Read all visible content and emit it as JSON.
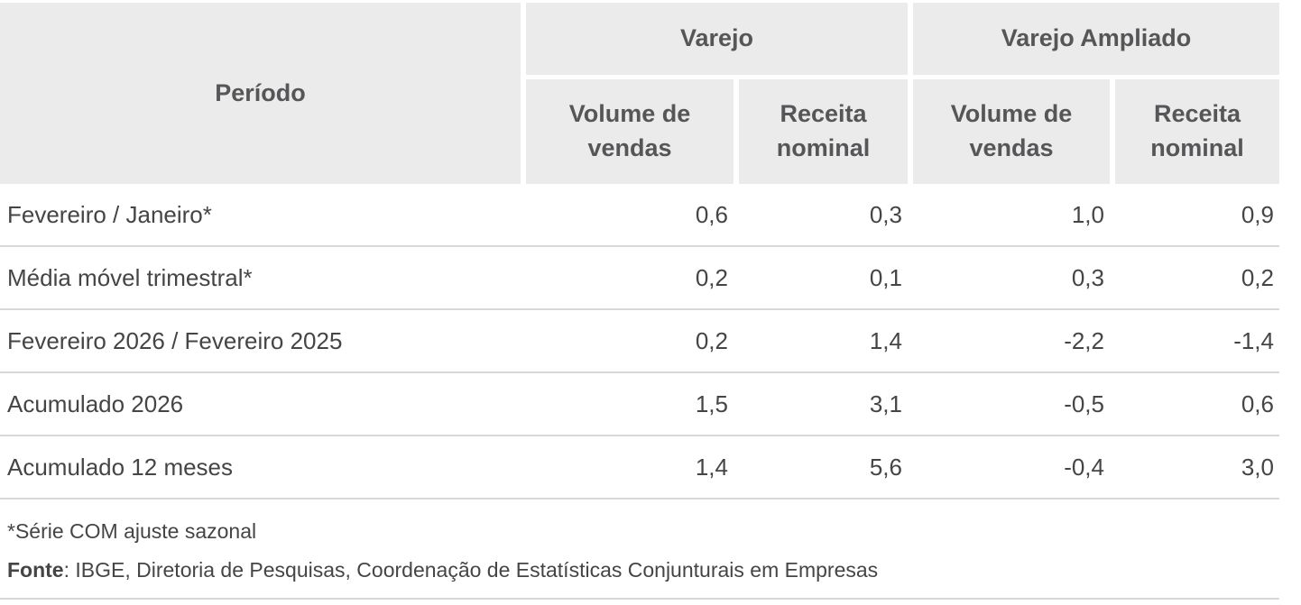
{
  "table": {
    "header": {
      "period_label": "Período",
      "group_varejo": "Varejo",
      "group_varejo_ampliado": "Varejo Ampliado",
      "sub": [
        "Volume de\nvendas",
        "Receita\nnominal",
        "Volume de\nvendas",
        "Receita\nnominal"
      ]
    },
    "rows": [
      {
        "label": "Fevereiro / Janeiro*",
        "values": [
          "0,6",
          "0,3",
          "1,0",
          "0,9"
        ]
      },
      {
        "label": "Média móvel trimestral*",
        "values": [
          "0,2",
          "0,1",
          "0,3",
          "0,2"
        ]
      },
      {
        "label": "Fevereiro 2026 / Fevereiro 2025",
        "values": [
          "0,2",
          "1,4",
          "-2,2",
          "-1,4"
        ]
      },
      {
        "label": "Acumulado 2026",
        "values": [
          "1,5",
          "3,1",
          "-0,5",
          "0,6"
        ]
      },
      {
        "label": "Acumulado 12 meses",
        "values": [
          "1,4",
          "5,6",
          "-0,4",
          "3,0"
        ]
      }
    ]
  },
  "footer": {
    "note": "*Série COM ajuste sazonal",
    "source_label": "Fonte",
    "source_text": ": IBGE, Diretoria de Pesquisas, Coordenação de Estatísticas Conjunturais em Empresas"
  },
  "colors": {
    "header_bg": "#ebebeb",
    "header_text": "#565658",
    "body_text": "#454547",
    "divider": "#d8d8d8"
  },
  "chart_data": {
    "type": "table",
    "title": "",
    "column_groups": [
      "Varejo",
      "Varejo Ampliado"
    ],
    "columns": [
      "Período",
      "Varejo — Volume de vendas",
      "Varejo — Receita nominal",
      "Varejo Ampliado — Volume de vendas",
      "Varejo Ampliado — Receita nominal"
    ],
    "rows": [
      [
        "Fevereiro / Janeiro*",
        0.6,
        0.3,
        1.0,
        0.9
      ],
      [
        "Média móvel trimestral*",
        0.2,
        0.1,
        0.3,
        0.2
      ],
      [
        "Fevereiro 2026 / Fevereiro 2025",
        0.2,
        1.4,
        -2.2,
        -1.4
      ],
      [
        "Acumulado 2026",
        1.5,
        3.1,
        -0.5,
        0.6
      ],
      [
        "Acumulado 12 meses",
        1.4,
        5.6,
        -0.4,
        3.0
      ]
    ],
    "notes": [
      "*Série COM ajuste sazonal",
      "Fonte: IBGE, Diretoria de Pesquisas, Coordenação de Estatísticas Conjunturais em Empresas"
    ]
  }
}
